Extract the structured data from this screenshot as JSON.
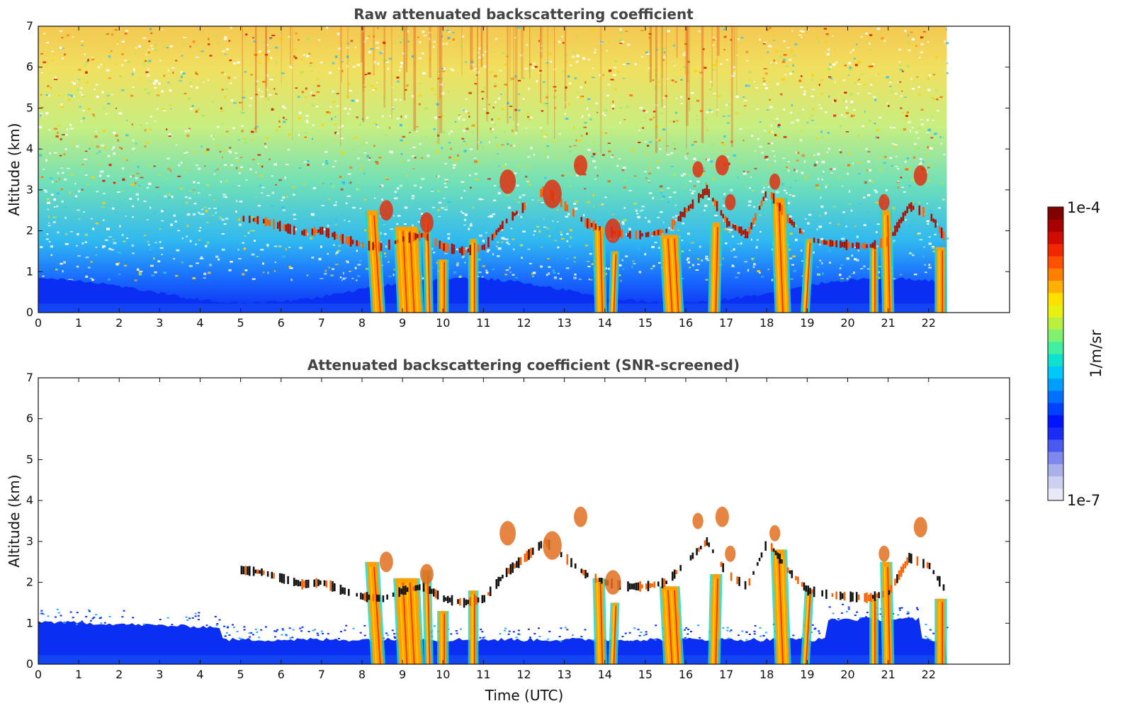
{
  "chart_data": [
    {
      "type": "heatmap",
      "title": "Raw attenuated backscattering coefficient",
      "xlabel": "",
      "ylabel": "Altitude (km)",
      "xlim": [
        0,
        24
      ],
      "ylim": [
        0,
        7
      ],
      "x_ticks": [
        "0",
        "1",
        "2",
        "3",
        "4",
        "5",
        "6",
        "7",
        "8",
        "9",
        "10",
        "11",
        "12",
        "13",
        "14",
        "15",
        "16",
        "17",
        "18",
        "19",
        "20",
        "21",
        "22"
      ],
      "y_ticks": [
        "0",
        "1",
        "2",
        "3",
        "4",
        "5",
        "6",
        "7"
      ],
      "data_end_time": 22.45,
      "screened": false
    },
    {
      "type": "heatmap",
      "title": "Attenuated backscattering coefficient (SNR-screened)",
      "xlabel": "Time (UTC)",
      "ylabel": "Altitude (km)",
      "xlim": [
        0,
        24
      ],
      "ylim": [
        0,
        7
      ],
      "x_ticks": [
        "0",
        "1",
        "2",
        "3",
        "4",
        "5",
        "6",
        "7",
        "8",
        "9",
        "10",
        "11",
        "12",
        "13",
        "14",
        "15",
        "16",
        "17",
        "18",
        "19",
        "20",
        "21",
        "22"
      ],
      "y_ticks": [
        "0",
        "1",
        "2",
        "3",
        "4",
        "5",
        "6",
        "7"
      ],
      "data_end_time": 22.45,
      "screened": true
    }
  ],
  "features": {
    "cloud_layer": [
      [
        5.0,
        2.3
      ],
      [
        5.5,
        2.25
      ],
      [
        6.0,
        2.1
      ],
      [
        6.5,
        1.95
      ],
      [
        7.0,
        2.0
      ],
      [
        7.5,
        1.8
      ],
      [
        8.0,
        1.65
      ],
      [
        8.5,
        1.6
      ],
      [
        9.0,
        1.8
      ],
      [
        9.5,
        1.9
      ],
      [
        10.0,
        1.6
      ],
      [
        10.5,
        1.5
      ],
      [
        11.0,
        1.6
      ],
      [
        11.5,
        2.2
      ],
      [
        12.0,
        2.6
      ],
      [
        12.5,
        3.0
      ],
      [
        13.0,
        2.6
      ],
      [
        13.5,
        2.2
      ],
      [
        14.0,
        2.0
      ],
      [
        14.5,
        1.9
      ],
      [
        15.0,
        1.9
      ],
      [
        15.5,
        2.0
      ],
      [
        16.0,
        2.5
      ],
      [
        16.5,
        3.0
      ],
      [
        17.0,
        2.2
      ],
      [
        17.5,
        1.9
      ],
      [
        18.0,
        3.0
      ],
      [
        18.5,
        2.3
      ],
      [
        19.0,
        1.8
      ],
      [
        19.5,
        1.7
      ],
      [
        20.0,
        1.65
      ],
      [
        20.5,
        1.62
      ],
      [
        21.0,
        1.75
      ],
      [
        21.5,
        2.6
      ],
      [
        22.0,
        2.4
      ],
      [
        22.4,
        1.8
      ]
    ],
    "cloud_blobs": [
      [
        11.6,
        3.2,
        0.3
      ],
      [
        13.4,
        3.6,
        0.25
      ],
      [
        16.3,
        3.5,
        0.2
      ],
      [
        16.9,
        3.6,
        0.25
      ],
      [
        21.8,
        3.35,
        0.25
      ],
      [
        12.7,
        2.9,
        0.35
      ],
      [
        14.2,
        2.0,
        0.3
      ],
      [
        8.6,
        2.5,
        0.25
      ],
      [
        9.6,
        2.2,
        0.25
      ],
      [
        17.1,
        2.7,
        0.2
      ],
      [
        18.2,
        3.2,
        0.2
      ],
      [
        20.9,
        2.7,
        0.2
      ]
    ],
    "rain_shafts": [
      {
        "x": 8.4,
        "w": 0.25,
        "top": 2.5,
        "lean": -0.15
      },
      {
        "x": 9.2,
        "w": 0.55,
        "top": 2.1,
        "lean": -0.1
      },
      {
        "x": 9.65,
        "w": 0.12,
        "top": 2.3,
        "lean": -0.05
      },
      {
        "x": 10.0,
        "w": 0.18,
        "top": 1.3,
        "lean": 0.0
      },
      {
        "x": 10.75,
        "w": 0.15,
        "top": 1.8,
        "lean": 0.0
      },
      {
        "x": 13.9,
        "w": 0.2,
        "top": 2.1,
        "lean": -0.05
      },
      {
        "x": 14.2,
        "w": 0.12,
        "top": 1.5,
        "lean": 0.05
      },
      {
        "x": 15.7,
        "w": 0.4,
        "top": 1.9,
        "lean": -0.1
      },
      {
        "x": 16.7,
        "w": 0.2,
        "top": 2.2,
        "lean": 0.05
      },
      {
        "x": 18.4,
        "w": 0.3,
        "top": 2.8,
        "lean": -0.1
      },
      {
        "x": 18.95,
        "w": 0.12,
        "top": 1.8,
        "lean": 0.1
      },
      {
        "x": 20.65,
        "w": 0.12,
        "top": 1.6,
        "lean": 0.0
      },
      {
        "x": 21.0,
        "w": 0.2,
        "top": 2.5,
        "lean": -0.05
      },
      {
        "x": 22.3,
        "w": 0.2,
        "top": 1.6,
        "lean": 0.0
      }
    ]
  },
  "colorbar": {
    "label": "1/m/sr",
    "max_label": "1e-4",
    "min_label": "1e-7",
    "colors": [
      "#e8e8f6",
      "#cdd0ef",
      "#aab0ea",
      "#7f88ec",
      "#4a5af0",
      "#1a2cf4",
      "#0014ff",
      "#0040ff",
      "#0070ff",
      "#009fff",
      "#00c8f8",
      "#10e0d0",
      "#40f0a0",
      "#80f070",
      "#b8f040",
      "#e8f010",
      "#ffe000",
      "#ffb000",
      "#ff8000",
      "#ff5000",
      "#f02800",
      "#d00c00",
      "#a80000",
      "#800000"
    ]
  }
}
